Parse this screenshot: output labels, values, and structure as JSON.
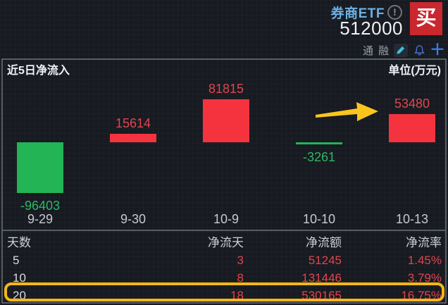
{
  "header": {
    "title": "券商ETF",
    "code": "512000",
    "buy_label": "买",
    "info_glyph": "!",
    "margin_flags": [
      "通",
      "融"
    ],
    "plus_glyph": "＋",
    "buy_color": "#c9282e",
    "title_color": "#6cb0e4"
  },
  "chart_data": {
    "type": "bar",
    "title": "近5日净流入",
    "unit_label": "单位(万元)",
    "categories": [
      "9-29",
      "9-30",
      "10-9",
      "10-10",
      "10-13"
    ],
    "values": [
      -96403,
      15614,
      81815,
      -3261,
      53480
    ],
    "value_labels": [
      "-96403",
      "15614",
      "81815",
      "-3261",
      "53480"
    ],
    "ylim": [
      -96403,
      81815
    ],
    "grid": false,
    "positive_color": "#f5333f",
    "negative_color": "#23b455",
    "positive_label_color": "#e0454f",
    "negative_label_color": "#2cb767",
    "annotation": {
      "type": "arrow",
      "color": "#fcc51e",
      "points_to": "10-13"
    }
  },
  "table": {
    "headers": [
      "天数",
      "净流天",
      "净流额",
      "净流率"
    ],
    "rows": [
      [
        "5",
        "3",
        "51245",
        "1.45%"
      ],
      [
        "10",
        "8",
        "131446",
        "3.79%"
      ],
      [
        "20",
        "18",
        "530165",
        "16.75%"
      ]
    ],
    "highlight_row_index": 2,
    "highlight_color": "#f2b717"
  }
}
